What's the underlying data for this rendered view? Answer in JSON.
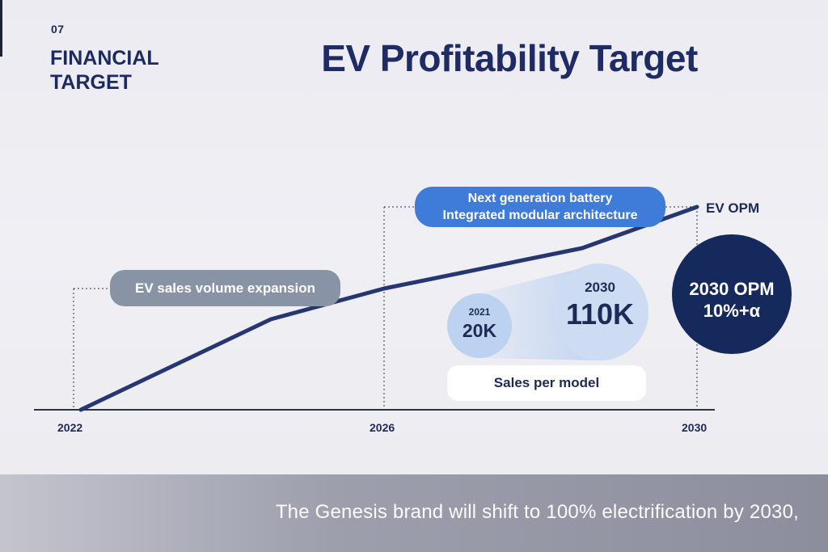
{
  "section": {
    "number": "07",
    "title": "FINANCIAL\nTARGET"
  },
  "title": "EV Profitability Target",
  "labels": {
    "volume": "EV sales volume expansion",
    "battery_line1": "Next generation battery",
    "battery_line2": "Integrated modular architecture",
    "ev_opm": "EV OPM"
  },
  "sales_per_model": {
    "label": "Sales per model",
    "from": {
      "year": "2021",
      "value": "20K"
    },
    "to": {
      "year": "2030",
      "value": "110K"
    }
  },
  "opm_target": {
    "line1": "2030 OPM",
    "line2": "10%+α"
  },
  "axis": {
    "ticks": [
      "2022",
      "2026",
      "2030"
    ]
  },
  "caption": "The Genesis brand will shift to 100% electrification by 2030,",
  "colors": {
    "navy": "#1f2b63",
    "line": "#263670",
    "accent_blue": "#3f7bd8",
    "grey_pill": "#8993a6",
    "bubble_light": "#cddcf3",
    "opm_circle": "#15295c"
  }
}
